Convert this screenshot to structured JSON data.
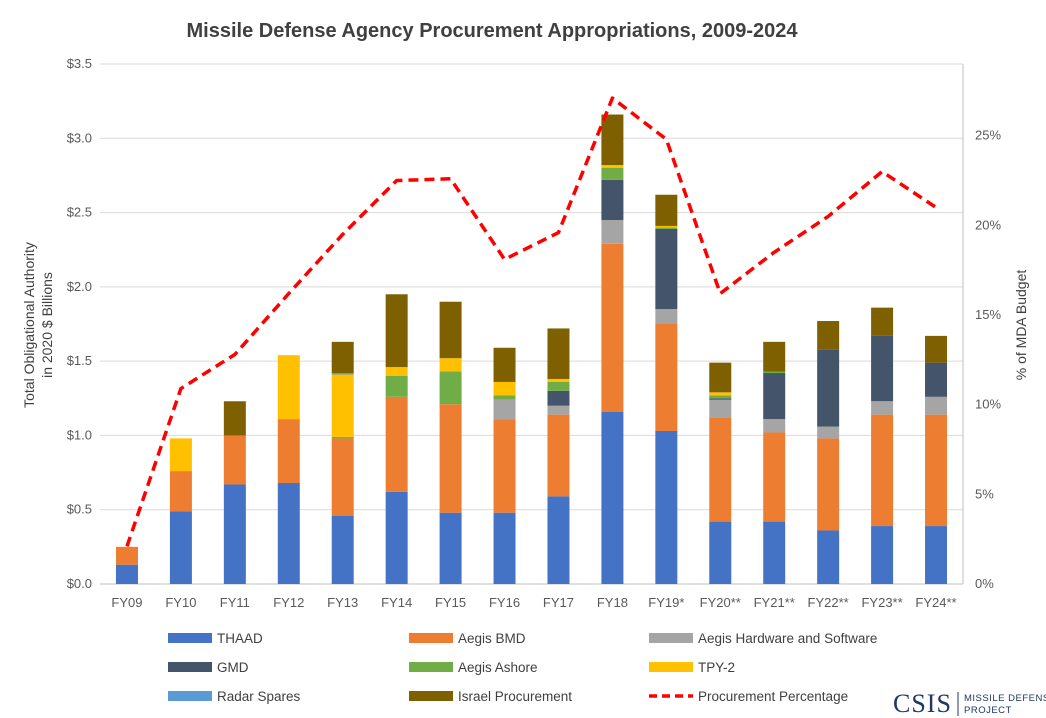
{
  "chart_data": {
    "type": "bar",
    "stacked": true,
    "title": "Missile Defense Agency Procurement Appropriations, 2009-2024",
    "ylabel_lines": [
      "Total Obligational Authority",
      "in 2020 $ Billions"
    ],
    "y2label": "% of MDA Budget",
    "ylim": [
      0,
      3.5
    ],
    "y2lim": [
      0,
      0.29
    ],
    "yticks": [
      0,
      0.5,
      1.0,
      1.5,
      2.0,
      2.5,
      3.0,
      3.5
    ],
    "ytick_labels": [
      "$0.0",
      "$0.5",
      "$1.0",
      "$1.5",
      "$2.0",
      "$2.5",
      "$3.0",
      "$3.5"
    ],
    "y2ticks": [
      0,
      0.05,
      0.1,
      0.15,
      0.2,
      0.25
    ],
    "y2tick_labels": [
      "0%",
      "5%",
      "10%",
      "15%",
      "20%",
      "25%"
    ],
    "grid": true,
    "legend_position": "bottom",
    "categories": [
      "FY09",
      "FY10",
      "FY11",
      "FY12",
      "FY13",
      "FY14",
      "FY15",
      "FY16",
      "FY17",
      "FY18",
      "FY19*",
      "FY20**",
      "FY21**",
      "FY22**",
      "FY23**",
      "FY24**"
    ],
    "series": [
      {
        "name": "THAAD",
        "color": "#4472c4",
        "values": [
          0.13,
          0.49,
          0.67,
          0.68,
          0.46,
          0.62,
          0.48,
          0.48,
          0.59,
          1.16,
          1.03,
          0.42,
          0.42,
          0.36,
          0.39,
          0.39
        ]
      },
      {
        "name": "Aegis BMD",
        "color": "#ed7d31",
        "values": [
          0.12,
          0.27,
          0.33,
          0.43,
          0.52,
          0.64,
          0.73,
          0.63,
          0.55,
          1.13,
          0.72,
          0.7,
          0.6,
          0.62,
          0.75,
          0.75
        ]
      },
      {
        "name": "Aegis Hardware and Software",
        "color": "#a5a5a5",
        "values": [
          0,
          0,
          0,
          0,
          0,
          0,
          0,
          0.13,
          0.06,
          0.16,
          0.1,
          0.12,
          0.09,
          0.08,
          0.09,
          0.12
        ]
      },
      {
        "name": "GMD",
        "color": "#44546a",
        "values": [
          0,
          0,
          0,
          0,
          0,
          0,
          0,
          0,
          0.1,
          0.27,
          0.54,
          0.01,
          0.31,
          0.52,
          0.44,
          0.23
        ]
      },
      {
        "name": "Aegis Ashore",
        "color": "#70ad47",
        "values": [
          0,
          0,
          0,
          0,
          0.01,
          0.14,
          0.22,
          0.03,
          0.06,
          0.08,
          0.01,
          0.02,
          0.01,
          0,
          0,
          0
        ]
      },
      {
        "name": "TPY-2",
        "color": "#ffc000",
        "values": [
          0,
          0.22,
          0,
          0.43,
          0.42,
          0.06,
          0.09,
          0.09,
          0.02,
          0.02,
          0.01,
          0.02,
          0,
          0,
          0,
          0
        ]
      },
      {
        "name": "Radar Spares",
        "color": "#5b9bd5",
        "values": [
          0,
          0,
          0,
          0,
          0.01,
          0,
          0,
          0,
          0,
          0,
          0,
          0,
          0,
          0,
          0,
          0
        ]
      },
      {
        "name": "Israel Procurement",
        "color": "#7f6000",
        "values": [
          0,
          0,
          0.23,
          0,
          0.21,
          0.49,
          0.38,
          0.23,
          0.34,
          0.34,
          0.21,
          0.2,
          0.2,
          0.19,
          0.19,
          0.18
        ]
      }
    ],
    "line_series": {
      "name": "Procurement Percentage",
      "color": "#ff0000",
      "axis": "right",
      "values": [
        0.021,
        0.109,
        0.128,
        0.162,
        0.195,
        0.225,
        0.226,
        0.181,
        0.196,
        0.271,
        0.248,
        0.162,
        0.185,
        0.205,
        0.23,
        0.21
      ]
    }
  },
  "legend": {
    "items": [
      {
        "name": "THAAD",
        "color": "#4472c4",
        "kind": "box"
      },
      {
        "name": "Aegis BMD",
        "color": "#ed7d31",
        "kind": "box"
      },
      {
        "name": "Aegis Hardware and Software",
        "color": "#a5a5a5",
        "kind": "box"
      },
      {
        "name": "GMD",
        "color": "#44546a",
        "kind": "box"
      },
      {
        "name": "Aegis Ashore",
        "color": "#70ad47",
        "kind": "box"
      },
      {
        "name": "TPY-2",
        "color": "#ffc000",
        "kind": "box"
      },
      {
        "name": "Radar Spares",
        "color": "#5b9bd5",
        "kind": "box"
      },
      {
        "name": "Israel Procurement",
        "color": "#7f6000",
        "kind": "box"
      },
      {
        "name": "Procurement Percentage",
        "color": "#ff0000",
        "kind": "dash"
      }
    ]
  },
  "logo": {
    "name": "CSIS",
    "line1": "MISSILE DEFENSE",
    "line2": "PROJECT",
    "color": "#1f3864"
  }
}
